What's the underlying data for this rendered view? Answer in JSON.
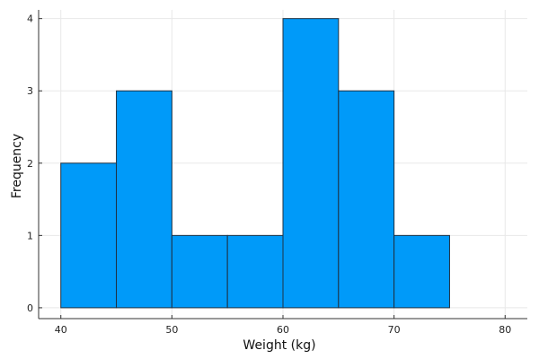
{
  "chart_data": {
    "type": "bar",
    "subtype": "histogram",
    "title": "",
    "xlabel": "Weight (kg)",
    "ylabel": "Frequency",
    "bins": [
      {
        "start": 40,
        "end": 45,
        "count": 2
      },
      {
        "start": 45,
        "end": 50,
        "count": 3
      },
      {
        "start": 50,
        "end": 55,
        "count": 1
      },
      {
        "start": 55,
        "end": 60,
        "count": 1
      },
      {
        "start": 60,
        "end": 65,
        "count": 4
      },
      {
        "start": 65,
        "end": 70,
        "count": 3
      },
      {
        "start": 70,
        "end": 75,
        "count": 1
      },
      {
        "start": 75,
        "end": 80,
        "count": 0
      }
    ],
    "xlim": [
      38,
      82
    ],
    "ylim": [
      -0.15,
      4.12
    ],
    "xticks": [
      40,
      50,
      60,
      70,
      80
    ],
    "yticks": [
      0,
      1,
      2,
      3,
      4
    ],
    "grid": true,
    "legend": "none",
    "colors": {
      "bar_fill": "#009af9",
      "bar_edge": "#1f3142",
      "grid": "#e8e8e8",
      "axis": "#333333"
    }
  }
}
